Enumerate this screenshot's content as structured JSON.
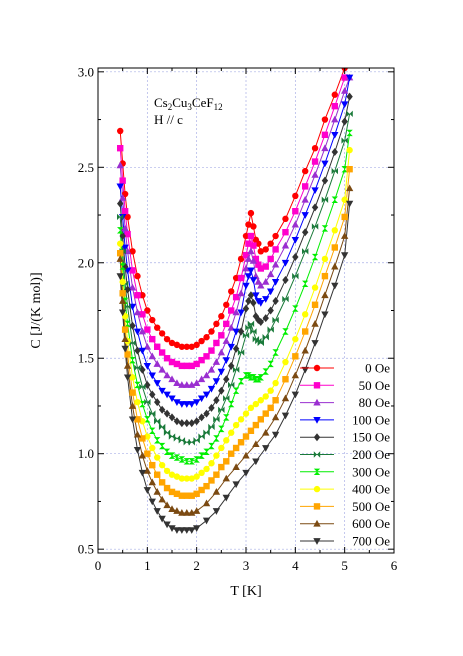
{
  "chart_data": {
    "type": "line",
    "title": "",
    "annotation": {
      "base": "Cs",
      "parts": [
        {
          "t": "Cs",
          "sub": false
        },
        {
          "t": "2",
          "sub": true
        },
        {
          "t": "Cu",
          "sub": false
        },
        {
          "t": "3",
          "sub": true
        },
        {
          "t": "CeF",
          "sub": false
        },
        {
          "t": "12",
          "sub": true
        }
      ],
      "line2": "H // c"
    },
    "xlabel": "T [K]",
    "ylabel": "C [J/(K mol)]",
    "xlim": [
      0,
      6
    ],
    "ylim": [
      0.48,
      3.02
    ],
    "xticks": [
      0,
      1,
      2,
      3,
      4,
      5,
      6
    ],
    "yticks": [
      0.5,
      1.0,
      1.5,
      2.0,
      2.5,
      3.0
    ],
    "ytick_labels": [
      "0.5",
      "1.0",
      "1.5",
      "2.0",
      "2.5",
      "3.0"
    ],
    "grid": true,
    "legend_position": "right",
    "series": [
      {
        "name": "0 Oe",
        "color": "#ff0000",
        "marker": "circle",
        "x": [
          0.45,
          0.5,
          0.55,
          0.6,
          0.7,
          0.8,
          0.9,
          1.0,
          1.1,
          1.2,
          1.3,
          1.4,
          1.5,
          1.6,
          1.7,
          1.8,
          1.9,
          2.0,
          2.1,
          2.2,
          2.3,
          2.4,
          2.5,
          2.6,
          2.7,
          2.8,
          2.9,
          3.0,
          3.05,
          3.1,
          3.15,
          3.2,
          3.25,
          3.3,
          3.4,
          3.5,
          3.6,
          3.8,
          4.0,
          4.2,
          4.4,
          4.6,
          4.8,
          5.0
        ],
        "y": [
          2.69,
          2.52,
          2.36,
          2.24,
          2.06,
          1.93,
          1.83,
          1.75,
          1.7,
          1.66,
          1.63,
          1.6,
          1.58,
          1.57,
          1.56,
          1.56,
          1.56,
          1.57,
          1.59,
          1.61,
          1.64,
          1.68,
          1.72,
          1.78,
          1.85,
          1.92,
          2.02,
          2.14,
          2.2,
          2.26,
          2.19,
          2.12,
          2.1,
          2.06,
          2.07,
          2.1,
          2.14,
          2.23,
          2.35,
          2.48,
          2.6,
          2.75,
          2.88,
          3.02
        ]
      },
      {
        "name": "50 Oe",
        "color": "#ff00cc",
        "marker": "square",
        "x": [
          0.45,
          0.5,
          0.55,
          0.6,
          0.7,
          0.8,
          0.9,
          1.0,
          1.1,
          1.2,
          1.3,
          1.4,
          1.5,
          1.6,
          1.7,
          1.8,
          1.9,
          2.0,
          2.1,
          2.2,
          2.3,
          2.4,
          2.5,
          2.6,
          2.7,
          2.8,
          2.9,
          3.0,
          3.05,
          3.1,
          3.15,
          3.2,
          3.25,
          3.3,
          3.4,
          3.5,
          3.6,
          3.8,
          4.0,
          4.2,
          4.4,
          4.6,
          4.8,
          5.0
        ],
        "y": [
          2.6,
          2.43,
          2.27,
          2.15,
          1.96,
          1.83,
          1.73,
          1.65,
          1.6,
          1.56,
          1.53,
          1.5,
          1.48,
          1.47,
          1.46,
          1.46,
          1.46,
          1.47,
          1.49,
          1.51,
          1.54,
          1.58,
          1.62,
          1.68,
          1.75,
          1.82,
          1.92,
          2.04,
          2.1,
          2.14,
          2.09,
          2.02,
          1.99,
          1.97,
          1.98,
          2.02,
          2.07,
          2.16,
          2.27,
          2.4,
          2.53,
          2.67,
          2.82,
          2.97
        ]
      },
      {
        "name": "80 Oe",
        "color": "#9a2fd0",
        "marker": "triangle-up",
        "x": [
          0.45,
          0.5,
          0.55,
          0.6,
          0.7,
          0.8,
          0.9,
          1.0,
          1.1,
          1.2,
          1.3,
          1.4,
          1.5,
          1.6,
          1.7,
          1.8,
          1.9,
          2.0,
          2.1,
          2.2,
          2.3,
          2.4,
          2.5,
          2.6,
          2.7,
          2.8,
          2.9,
          3.0,
          3.05,
          3.1,
          3.15,
          3.2,
          3.25,
          3.3,
          3.4,
          3.5,
          3.6,
          3.8,
          4.0,
          4.2,
          4.4,
          4.6,
          4.8,
          5.0,
          5.1
        ],
        "y": [
          2.51,
          2.34,
          2.18,
          2.06,
          1.87,
          1.74,
          1.64,
          1.56,
          1.51,
          1.47,
          1.44,
          1.41,
          1.39,
          1.37,
          1.36,
          1.36,
          1.36,
          1.37,
          1.39,
          1.41,
          1.44,
          1.48,
          1.53,
          1.59,
          1.66,
          1.74,
          1.84,
          1.97,
          2.02,
          2.06,
          2.01,
          1.93,
          1.9,
          1.88,
          1.9,
          1.94,
          1.99,
          2.09,
          2.2,
          2.33,
          2.46,
          2.6,
          2.75,
          2.9,
          2.97
        ]
      },
      {
        "name": "100 Oe",
        "color": "#0000ff",
        "marker": "triangle-down",
        "x": [
          0.45,
          0.5,
          0.55,
          0.6,
          0.7,
          0.8,
          0.9,
          1.0,
          1.1,
          1.2,
          1.3,
          1.4,
          1.5,
          1.6,
          1.7,
          1.8,
          1.9,
          2.0,
          2.1,
          2.2,
          2.3,
          2.4,
          2.5,
          2.6,
          2.7,
          2.8,
          2.9,
          3.0,
          3.05,
          3.1,
          3.15,
          3.2,
          3.25,
          3.3,
          3.4,
          3.5,
          3.6,
          3.8,
          4.0,
          4.2,
          4.4,
          4.6,
          4.8,
          5.0,
          5.1
        ],
        "y": [
          2.4,
          2.24,
          2.08,
          1.96,
          1.77,
          1.64,
          1.54,
          1.46,
          1.41,
          1.37,
          1.33,
          1.31,
          1.29,
          1.27,
          1.26,
          1.26,
          1.26,
          1.27,
          1.29,
          1.31,
          1.34,
          1.38,
          1.43,
          1.49,
          1.56,
          1.64,
          1.74,
          1.88,
          1.93,
          1.96,
          1.91,
          1.83,
          1.8,
          1.79,
          1.81,
          1.85,
          1.9,
          2.0,
          2.12,
          2.25,
          2.38,
          2.52,
          2.67,
          2.83,
          2.97
        ]
      },
      {
        "name": "150 Oe",
        "color": "#333333",
        "marker": "diamond",
        "x": [
          0.45,
          0.5,
          0.55,
          0.6,
          0.7,
          0.8,
          0.9,
          1.0,
          1.1,
          1.2,
          1.3,
          1.4,
          1.5,
          1.6,
          1.7,
          1.8,
          1.9,
          2.0,
          2.1,
          2.2,
          2.3,
          2.4,
          2.5,
          2.6,
          2.7,
          2.8,
          2.9,
          3.0,
          3.05,
          3.1,
          3.15,
          3.2,
          3.25,
          3.3,
          3.4,
          3.5,
          3.6,
          3.8,
          4.0,
          4.2,
          4.4,
          4.6,
          4.8,
          5.0,
          5.1
        ],
        "y": [
          2.31,
          2.14,
          1.98,
          1.86,
          1.67,
          1.54,
          1.44,
          1.36,
          1.31,
          1.27,
          1.23,
          1.21,
          1.19,
          1.17,
          1.16,
          1.16,
          1.16,
          1.17,
          1.19,
          1.21,
          1.24,
          1.28,
          1.33,
          1.39,
          1.46,
          1.55,
          1.64,
          1.76,
          1.8,
          1.83,
          1.79,
          1.72,
          1.7,
          1.69,
          1.71,
          1.75,
          1.8,
          1.91,
          2.03,
          2.16,
          2.29,
          2.43,
          2.58,
          2.74,
          2.87
        ]
      },
      {
        "name": "200 Oe",
        "color": "#1a7a3a",
        "marker": "bowtie",
        "x": [
          0.45,
          0.5,
          0.55,
          0.6,
          0.7,
          0.8,
          0.9,
          1.0,
          1.1,
          1.2,
          1.3,
          1.4,
          1.5,
          1.6,
          1.7,
          1.8,
          1.9,
          2.0,
          2.1,
          2.2,
          2.3,
          2.4,
          2.5,
          2.6,
          2.7,
          2.8,
          2.9,
          3.0,
          3.05,
          3.1,
          3.15,
          3.2,
          3.25,
          3.3,
          3.4,
          3.5,
          3.6,
          3.8,
          4.0,
          4.2,
          4.4,
          4.6,
          4.8,
          5.0,
          5.1
        ],
        "y": [
          2.24,
          2.06,
          1.89,
          1.77,
          1.58,
          1.45,
          1.35,
          1.27,
          1.21,
          1.17,
          1.14,
          1.11,
          1.09,
          1.08,
          1.07,
          1.06,
          1.06,
          1.07,
          1.09,
          1.11,
          1.14,
          1.18,
          1.23,
          1.29,
          1.36,
          1.44,
          1.53,
          1.62,
          1.66,
          1.68,
          1.64,
          1.6,
          1.59,
          1.58,
          1.61,
          1.65,
          1.7,
          1.81,
          1.93,
          2.06,
          2.19,
          2.33,
          2.48,
          2.64,
          2.78
        ]
      },
      {
        "name": "300 Oe",
        "color": "#00ee00",
        "marker": "hourglass",
        "x": [
          0.45,
          0.5,
          0.55,
          0.6,
          0.7,
          0.8,
          0.9,
          1.0,
          1.1,
          1.2,
          1.3,
          1.4,
          1.5,
          1.6,
          1.7,
          1.8,
          1.9,
          2.0,
          2.1,
          2.2,
          2.3,
          2.4,
          2.5,
          2.6,
          2.7,
          2.8,
          2.9,
          3.0,
          3.05,
          3.1,
          3.15,
          3.2,
          3.25,
          3.3,
          3.4,
          3.5,
          3.6,
          3.8,
          4.0,
          4.2,
          4.4,
          4.6,
          4.8,
          5.0,
          5.1
        ],
        "y": [
          2.17,
          1.98,
          1.8,
          1.68,
          1.49,
          1.36,
          1.26,
          1.18,
          1.12,
          1.07,
          1.04,
          1.01,
          0.99,
          0.98,
          0.97,
          0.96,
          0.96,
          0.97,
          0.99,
          1.01,
          1.04,
          1.08,
          1.13,
          1.19,
          1.26,
          1.33,
          1.38,
          1.41,
          1.41,
          1.4,
          1.4,
          1.39,
          1.39,
          1.4,
          1.43,
          1.47,
          1.53,
          1.64,
          1.76,
          1.89,
          2.03,
          2.18,
          2.33,
          2.49,
          2.68
        ]
      },
      {
        "name": "400 Oe",
        "color": "#ffff00",
        "marker": "circle",
        "x": [
          0.45,
          0.5,
          0.55,
          0.6,
          0.7,
          0.8,
          0.9,
          1.0,
          1.1,
          1.2,
          1.3,
          1.4,
          1.5,
          1.6,
          1.7,
          1.8,
          1.9,
          2.0,
          2.1,
          2.2,
          2.3,
          2.4,
          2.5,
          2.6,
          2.7,
          2.8,
          2.9,
          3.0,
          3.1,
          3.2,
          3.3,
          3.4,
          3.5,
          3.6,
          3.8,
          4.0,
          4.2,
          4.4,
          4.6,
          4.8,
          5.0,
          5.1
        ],
        "y": [
          2.1,
          1.9,
          1.72,
          1.59,
          1.4,
          1.27,
          1.17,
          1.09,
          1.03,
          0.98,
          0.94,
          0.91,
          0.89,
          0.88,
          0.87,
          0.87,
          0.87,
          0.88,
          0.9,
          0.92,
          0.95,
          0.99,
          1.03,
          1.07,
          1.11,
          1.15,
          1.18,
          1.21,
          1.24,
          1.26,
          1.28,
          1.3,
          1.33,
          1.37,
          1.48,
          1.6,
          1.73,
          1.87,
          2.02,
          2.17,
          2.33,
          2.59
        ]
      },
      {
        "name": "500 Oe",
        "color": "#ffa500",
        "marker": "square",
        "x": [
          0.45,
          0.5,
          0.55,
          0.6,
          0.7,
          0.8,
          0.9,
          1.0,
          1.1,
          1.2,
          1.3,
          1.4,
          1.5,
          1.6,
          1.7,
          1.8,
          1.9,
          2.0,
          2.1,
          2.2,
          2.3,
          2.4,
          2.5,
          2.6,
          2.7,
          2.8,
          2.9,
          3.0,
          3.1,
          3.2,
          3.3,
          3.4,
          3.5,
          3.6,
          3.8,
          4.0,
          4.2,
          4.4,
          4.6,
          4.8,
          5.0,
          5.1
        ],
        "y": [
          2.05,
          1.84,
          1.65,
          1.52,
          1.32,
          1.18,
          1.08,
          1.0,
          0.94,
          0.89,
          0.85,
          0.82,
          0.8,
          0.79,
          0.78,
          0.78,
          0.78,
          0.79,
          0.81,
          0.83,
          0.86,
          0.89,
          0.93,
          0.96,
          1.0,
          1.03,
          1.06,
          1.09,
          1.12,
          1.15,
          1.18,
          1.21,
          1.24,
          1.28,
          1.39,
          1.51,
          1.64,
          1.78,
          1.93,
          2.08,
          2.24,
          2.49
        ]
      },
      {
        "name": "600 Oe",
        "color": "#7b4a12",
        "marker": "triangle-up",
        "x": [
          0.45,
          0.5,
          0.55,
          0.6,
          0.7,
          0.8,
          0.9,
          1.0,
          1.1,
          1.2,
          1.3,
          1.4,
          1.5,
          1.6,
          1.7,
          1.8,
          1.9,
          2.0,
          2.2,
          2.4,
          2.6,
          2.8,
          3.0,
          3.2,
          3.4,
          3.6,
          3.8,
          4.0,
          4.2,
          4.4,
          4.6,
          4.8,
          5.0,
          5.1
        ],
        "y": [
          2.02,
          1.8,
          1.6,
          1.46,
          1.25,
          1.1,
          0.99,
          0.91,
          0.85,
          0.8,
          0.76,
          0.73,
          0.71,
          0.7,
          0.69,
          0.69,
          0.69,
          0.7,
          0.74,
          0.8,
          0.87,
          0.93,
          0.99,
          1.05,
          1.11,
          1.19,
          1.29,
          1.41,
          1.54,
          1.68,
          1.83,
          1.98,
          2.14,
          2.39
        ]
      },
      {
        "name": "700 Oe",
        "color": "#333333",
        "marker": "triangle-down",
        "x": [
          0.45,
          0.5,
          0.55,
          0.6,
          0.7,
          0.8,
          0.9,
          1.0,
          1.1,
          1.2,
          1.3,
          1.4,
          1.5,
          1.6,
          1.7,
          1.8,
          1.9,
          2.0,
          2.2,
          2.4,
          2.6,
          2.8,
          3.0,
          3.2,
          3.4,
          3.6,
          3.8,
          4.0,
          4.2,
          4.4,
          4.6,
          4.8,
          5.0,
          5.1
        ],
        "y": [
          1.93,
          1.74,
          1.55,
          1.4,
          1.18,
          1.02,
          0.9,
          0.81,
          0.75,
          0.7,
          0.66,
          0.63,
          0.61,
          0.6,
          0.6,
          0.6,
          0.6,
          0.61,
          0.65,
          0.7,
          0.77,
          0.84,
          0.9,
          0.96,
          1.03,
          1.1,
          1.2,
          1.31,
          1.44,
          1.58,
          1.73,
          1.88,
          2.04,
          2.31
        ]
      }
    ]
  }
}
